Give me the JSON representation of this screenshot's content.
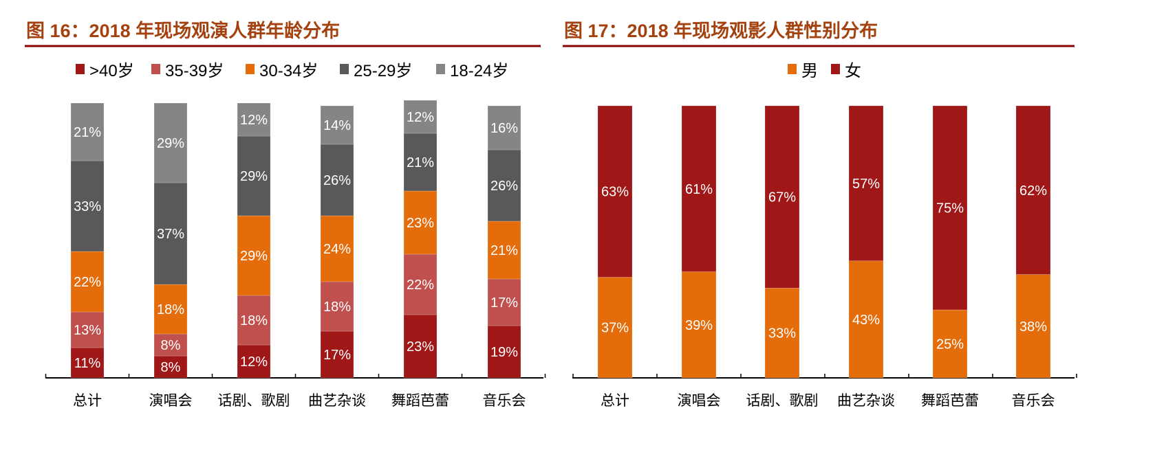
{
  "chart_data": [
    {
      "type": "bar",
      "stacked": true,
      "title": "图 16：2018 年现场观演人群年龄分布",
      "categories": [
        "总计",
        "演唱会",
        "话剧、歌剧",
        "曲艺杂谈",
        "舞蹈芭蕾",
        "音乐会"
      ],
      "legend_position": "top",
      "series": [
        {
          "name": ">40岁",
          "color": "#a01717",
          "values": [
            11,
            8,
            12,
            17,
            23,
            19
          ]
        },
        {
          "name": "35-39岁",
          "color": "#c0504d",
          "values": [
            13,
            8,
            18,
            18,
            22,
            17
          ]
        },
        {
          "name": "30-34岁",
          "color": "#e46c0a",
          "values": [
            22,
            18,
            29,
            24,
            23,
            21
          ]
        },
        {
          "name": "25-29岁",
          "color": "#595959",
          "values": [
            33,
            37,
            29,
            26,
            21,
            26
          ]
        },
        {
          "name": "18-24岁",
          "color": "#858585",
          "values": [
            21,
            29,
            12,
            14,
            12,
            16
          ]
        }
      ],
      "unit": "%",
      "ylim": [
        0,
        100
      ],
      "grid": false
    },
    {
      "type": "bar",
      "stacked": true,
      "title": "图 17：2018 年现场观影人群性别分布",
      "categories": [
        "总计",
        "演唱会",
        "话剧、歌剧",
        "曲艺杂谈",
        "舞蹈芭蕾",
        "音乐会"
      ],
      "legend_position": "top",
      "series": [
        {
          "name": "男",
          "color": "#e46c0a",
          "values": [
            37,
            39,
            33,
            43,
            25,
            38
          ]
        },
        {
          "name": "女",
          "color": "#a01717",
          "values": [
            63,
            61,
            67,
            57,
            75,
            62
          ]
        }
      ],
      "unit": "%",
      "ylim": [
        0,
        100
      ],
      "grid": false
    }
  ]
}
